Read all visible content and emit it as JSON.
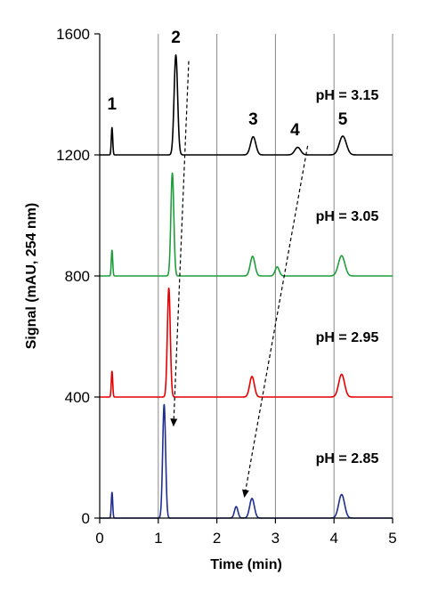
{
  "chart_data": {
    "type": "line",
    "title": "",
    "xlabel": "Time (min)",
    "ylabel": "Signal (mAU, 254 nm)",
    "xlim": [
      0,
      5
    ],
    "ylim": [
      0,
      1600
    ],
    "xticks": [
      0,
      1,
      2,
      3,
      4,
      5
    ],
    "xtick_labels": [
      "0",
      "1",
      "2",
      "3",
      "4",
      "5"
    ],
    "yticks": [
      0,
      400,
      800,
      1200,
      1600
    ],
    "ytick_labels": [
      "0",
      "400",
      "800",
      "1200",
      "1600"
    ],
    "grid": "vertical gridlines at each x tick",
    "legend": "none",
    "series": [
      {
        "name": "pH = 3.15",
        "label": "pH = 3.15",
        "color": "#000000",
        "baseline": 1200,
        "peaks": [
          {
            "t": 0.21,
            "h": 90,
            "w": 0.012
          },
          {
            "t": 1.3,
            "h": 330,
            "w": 0.03
          },
          {
            "t": 2.62,
            "h": 60,
            "w": 0.045
          },
          {
            "t": 3.38,
            "h": 25,
            "w": 0.05
          },
          {
            "t": 4.15,
            "h": 62,
            "w": 0.06
          }
        ]
      },
      {
        "name": "pH = 3.05",
        "label": "pH = 3.05",
        "color": "#1f9e3c",
        "baseline": 800,
        "peaks": [
          {
            "t": 0.21,
            "h": 85,
            "w": 0.012
          },
          {
            "t": 1.24,
            "h": 340,
            "w": 0.025
          },
          {
            "t": 2.61,
            "h": 65,
            "w": 0.04
          },
          {
            "t": 3.03,
            "h": 30,
            "w": 0.035
          },
          {
            "t": 4.13,
            "h": 67,
            "w": 0.055
          }
        ]
      },
      {
        "name": "pH = 2.95",
        "label": "pH = 2.95",
        "color": "#e60000",
        "baseline": 400,
        "peaks": [
          {
            "t": 0.21,
            "h": 85,
            "w": 0.012
          },
          {
            "t": 1.18,
            "h": 360,
            "w": 0.025
          },
          {
            "t": 2.6,
            "h": 68,
            "w": 0.04
          },
          {
            "t": 4.13,
            "h": 75,
            "w": 0.05
          }
        ]
      },
      {
        "name": "pH = 2.85",
        "label": "pH = 2.85",
        "color": "#1f2e8f",
        "baseline": 0,
        "peaks": [
          {
            "t": 0.21,
            "h": 85,
            "w": 0.012
          },
          {
            "t": 1.1,
            "h": 375,
            "w": 0.025
          },
          {
            "t": 2.33,
            "h": 38,
            "w": 0.03
          },
          {
            "t": 2.6,
            "h": 65,
            "w": 0.04
          },
          {
            "t": 4.13,
            "h": 78,
            "w": 0.05
          }
        ]
      }
    ],
    "annotations": {
      "peak_labels": [
        {
          "text": "1",
          "t": 0.21,
          "y": 1350
        },
        {
          "text": "2",
          "t": 1.3,
          "y": 1570
        },
        {
          "text": "3",
          "t": 2.62,
          "y": 1300
        },
        {
          "text": "4",
          "t": 3.38,
          "y": 1265
        },
        {
          "text": "5",
          "t": 4.15,
          "y": 1300
        }
      ],
      "arrows": [
        {
          "from": [
            1.52,
            1510
          ],
          "to": [
            1.26,
            305
          ]
        },
        {
          "from": [
            3.55,
            1230
          ],
          "to": [
            2.47,
            70
          ]
        }
      ]
    }
  }
}
